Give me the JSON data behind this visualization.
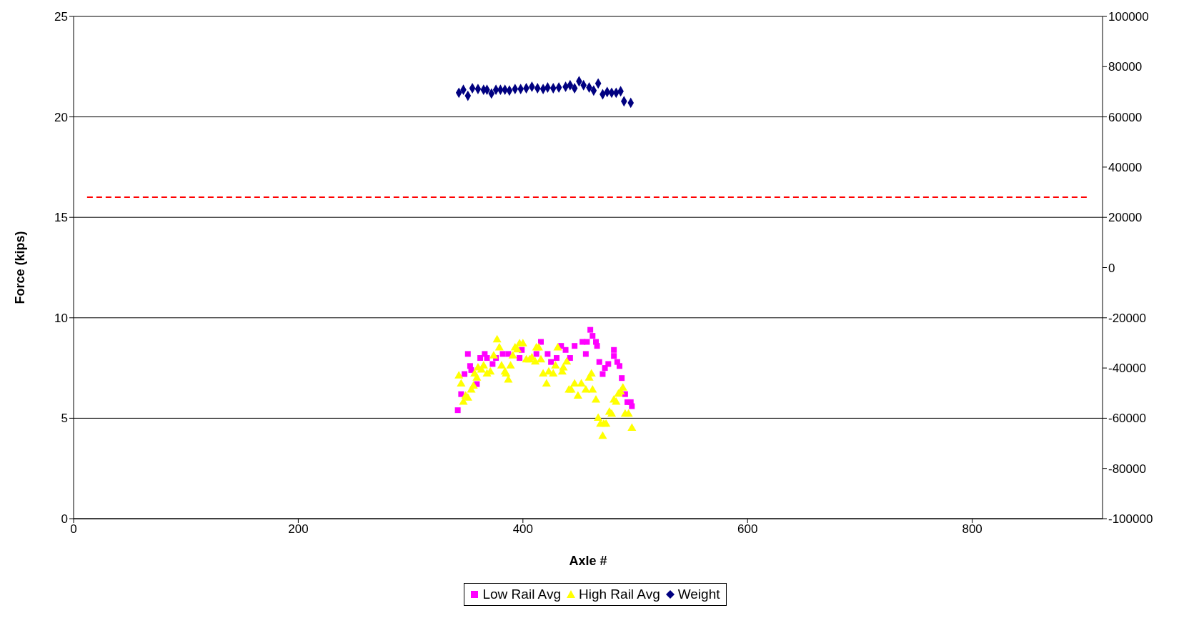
{
  "chart_data": {
    "type": "scatter",
    "xlabel": "Axle #",
    "ylabel": "Force (kips)",
    "xlim": [
      0,
      916
    ],
    "xticks": [
      0,
      200,
      400,
      600,
      800
    ],
    "ylim": [
      0,
      25
    ],
    "yticks": [
      0,
      5,
      10,
      15,
      20,
      25
    ],
    "y2lim": [
      -100000,
      100000
    ],
    "y2ticks": [
      -100000,
      -80000,
      -60000,
      -40000,
      -20000,
      0,
      20000,
      40000,
      60000,
      80000,
      100000
    ],
    "grid": "y",
    "legend": "bottom",
    "series": [
      {
        "name": "Low Rail Avg",
        "color": "#ff00ff",
        "marker": "square",
        "x": [
          342,
          345,
          346,
          348,
          351,
          353,
          354,
          358,
          359,
          362,
          366,
          368,
          373,
          376,
          382,
          387,
          397,
          399,
          404,
          412,
          416,
          422,
          425,
          430,
          434,
          438,
          442,
          446,
          453,
          456,
          457,
          460,
          462,
          465,
          466,
          468,
          471,
          473,
          476,
          481,
          481,
          484,
          486,
          488,
          491,
          493,
          496,
          497
        ],
        "values": [
          5.4,
          6.2,
          null,
          7.2,
          8.2,
          7.6,
          7.4,
          null,
          6.7,
          8.0,
          8.2,
          8.0,
          7.7,
          8.0,
          8.2,
          8.2,
          8.0,
          8.4,
          null,
          8.2,
          8.8,
          8.2,
          7.8,
          8.0,
          8.6,
          8.4,
          8.0,
          8.6,
          8.8,
          8.2,
          8.8,
          9.4,
          9.1,
          8.8,
          8.6,
          7.8,
          7.2,
          7.5,
          7.7,
          8.4,
          8.1,
          7.8,
          7.6,
          7.0,
          6.2,
          5.8,
          5.8,
          5.6
        ]
      },
      {
        "name": "High Rail Avg",
        "color": "#ffff00",
        "marker": "triangle",
        "x": [
          343,
          345,
          347,
          349,
          351,
          354,
          356,
          357,
          359,
          360,
          363,
          365,
          368,
          371,
          374,
          377,
          379,
          381,
          384,
          385,
          387,
          389,
          391,
          393,
          395,
          397,
          400,
          403,
          406,
          408,
          411,
          412,
          414,
          416,
          418,
          421,
          423,
          427,
          429,
          431,
          435,
          436,
          439,
          441,
          443,
          446,
          449,
          452,
          456,
          459,
          461,
          462,
          465,
          467,
          469,
          471,
          472,
          474,
          477,
          479,
          481,
          483,
          485,
          487,
          489,
          491,
          494,
          497
        ],
        "values": [
          7.1,
          6.7,
          5.8,
          6.1,
          6.0,
          6.4,
          6.6,
          7.2,
          7.0,
          7.5,
          7.4,
          7.6,
          7.2,
          7.3,
          8.1,
          8.9,
          8.5,
          7.6,
          7.3,
          7.2,
          6.9,
          7.6,
          8.1,
          8.5,
          8.4,
          8.7,
          8.7,
          7.9,
          7.9,
          8.0,
          7.8,
          8.5,
          8.5,
          7.9,
          7.2,
          6.7,
          7.3,
          7.2,
          7.6,
          8.5,
          7.3,
          7.5,
          7.8,
          6.4,
          6.4,
          6.7,
          6.1,
          6.7,
          6.4,
          7.0,
          7.2,
          6.4,
          5.9,
          5.0,
          4.7,
          4.1,
          4.7,
          4.7,
          5.3,
          5.2,
          5.9,
          5.8,
          6.2,
          6.3,
          6.5,
          5.2,
          5.2,
          4.5
        ]
      },
      {
        "name": "Weight",
        "color": "#000080",
        "marker": "diamond",
        "axis": "y2",
        "x": [
          343,
          347,
          351,
          355,
          360,
          365,
          368,
          372,
          376,
          380,
          384,
          388,
          393,
          398,
          403,
          408,
          413,
          418,
          422,
          427,
          432,
          438,
          442,
          446,
          450,
          454,
          459,
          463,
          467,
          471,
          475,
          479,
          483,
          487,
          490,
          496
        ],
        "values": [
          69600,
          70800,
          68400,
          71400,
          71100,
          70800,
          70800,
          69300,
          70800,
          70800,
          70800,
          70500,
          71100,
          71100,
          71400,
          72000,
          71400,
          71100,
          71700,
          71400,
          71700,
          72000,
          72600,
          71400,
          74200,
          72600,
          71700,
          70500,
          73300,
          69000,
          69900,
          69600,
          69600,
          70200,
          66200,
          65600
        ]
      },
      {
        "type": "line",
        "color": "#ff0000",
        "marker": "none",
        "line_style": "dashed",
        "x": [
          12,
          904
        ],
        "values": [
          16,
          16
        ]
      }
    ]
  }
}
